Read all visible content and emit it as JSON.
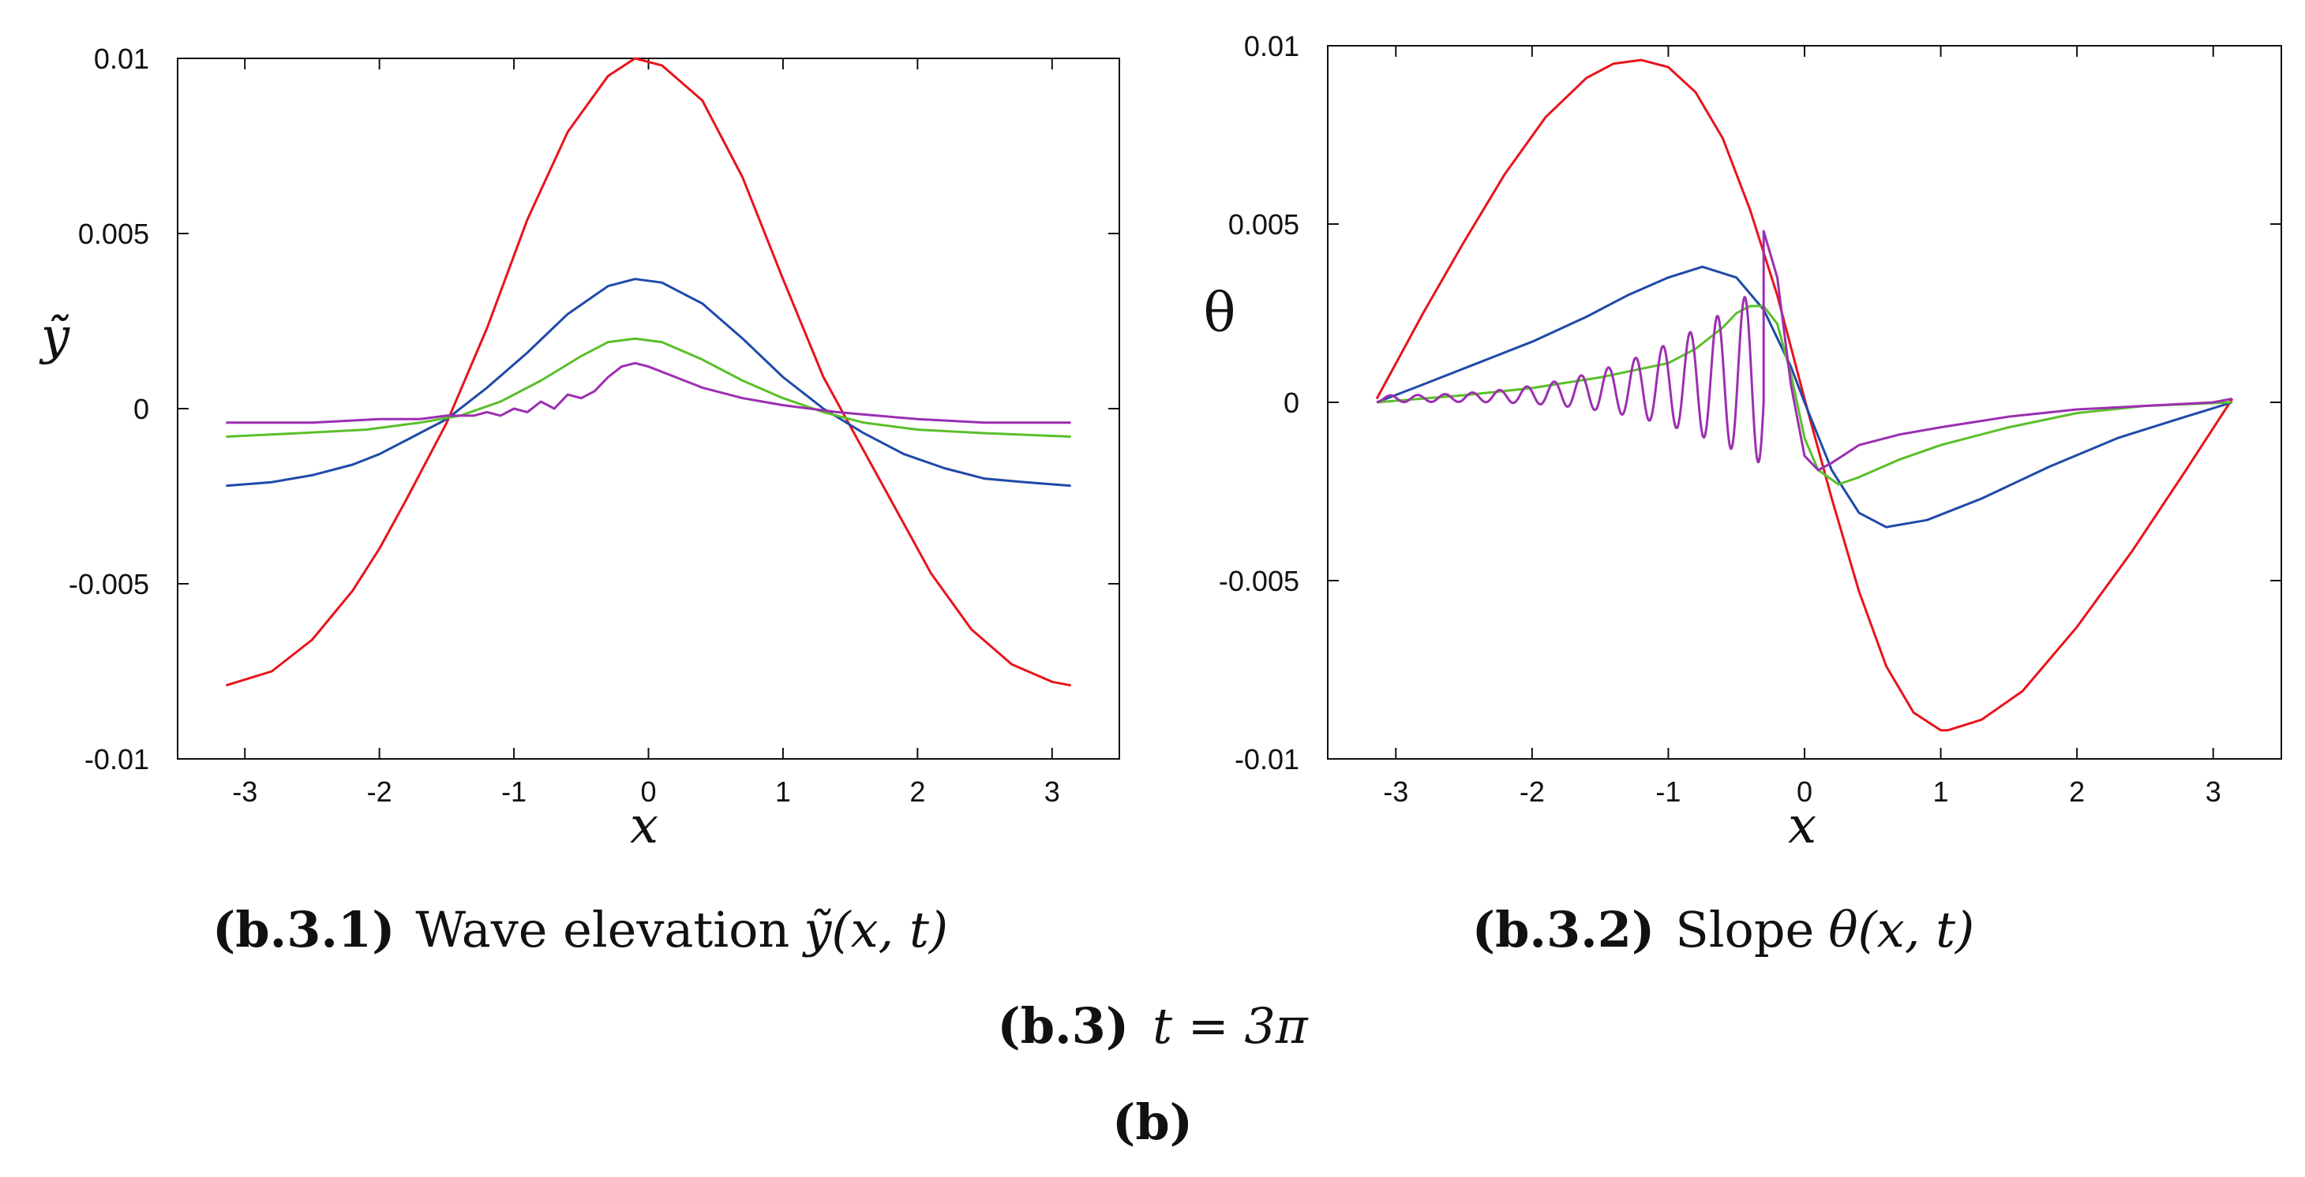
{
  "colors": {
    "red": "#e8141b",
    "blue": "#1f4aa8",
    "green": "#5bbf2a",
    "purple": "#9c2fb0"
  },
  "chart_data": [
    {
      "id": "b.3.1",
      "type": "line",
      "title": "Wave elevation ỹ(x, t)",
      "caption_label": "(b.3.1)",
      "caption_text": "Wave elevation",
      "caption_math": "ỹ(x, t)",
      "xlabel": "x",
      "ylabel": "ỹ",
      "xlim": [
        -3.5,
        3.5
      ],
      "ylim": [
        -0.01,
        0.01
      ],
      "xticks": [
        -3,
        -2,
        -1,
        0,
        1,
        2,
        3
      ],
      "xtick_labels": [
        "-3",
        "-2",
        "-1",
        "0",
        "1",
        "2",
        "3"
      ],
      "yticks": [
        -0.01,
        -0.005,
        0,
        0.005,
        0.01
      ],
      "ytick_labels": [
        "-0.01",
        "-0.005",
        "0",
        "0.005",
        "0.01"
      ],
      "series": [
        {
          "name": "red",
          "color": "#e8141b",
          "x": [
            -3.14,
            -2.8,
            -2.5,
            -2.2,
            -2.0,
            -1.8,
            -1.5,
            -1.2,
            -0.9,
            -0.6,
            -0.3,
            -0.1,
            0.1,
            0.4,
            0.7,
            1.0,
            1.3,
            1.5,
            1.8,
            2.1,
            2.4,
            2.7,
            3.0,
            3.14
          ],
          "y": [
            -0.0079,
            -0.0075,
            -0.0066,
            -0.0052,
            -0.004,
            -0.0026,
            -0.0004,
            0.0023,
            0.0054,
            0.0079,
            0.0095,
            0.01,
            0.0098,
            0.0088,
            0.0066,
            0.0037,
            0.0009,
            -0.0005,
            -0.0026,
            -0.0047,
            -0.0063,
            -0.0073,
            -0.0078,
            -0.0079
          ]
        },
        {
          "name": "blue",
          "color": "#1f4aa8",
          "x": [
            -3.14,
            -2.8,
            -2.5,
            -2.2,
            -2.0,
            -1.8,
            -1.5,
            -1.2,
            -0.9,
            -0.6,
            -0.3,
            -0.1,
            0.1,
            0.4,
            0.7,
            1.0,
            1.3,
            1.6,
            1.9,
            2.2,
            2.5,
            2.8,
            3.14
          ],
          "y": [
            -0.0022,
            -0.0021,
            -0.0019,
            -0.0016,
            -0.0013,
            -0.0009,
            -0.0003,
            0.0006,
            0.0016,
            0.0027,
            0.0035,
            0.0037,
            0.0036,
            0.003,
            0.002,
            0.0009,
            0.0,
            -0.0007,
            -0.0013,
            -0.0017,
            -0.002,
            -0.0021,
            -0.0022
          ]
        },
        {
          "name": "green",
          "color": "#5bbf2a",
          "x": [
            -3.14,
            -2.6,
            -2.1,
            -1.7,
            -1.4,
            -1.1,
            -0.8,
            -0.5,
            -0.3,
            -0.1,
            0.1,
            0.4,
            0.7,
            1.0,
            1.3,
            1.6,
            2.0,
            2.5,
            3.14
          ],
          "y": [
            -0.0008,
            -0.0007,
            -0.0006,
            -0.0004,
            -0.0002,
            0.0002,
            0.0008,
            0.0015,
            0.0019,
            0.002,
            0.0019,
            0.0014,
            0.0008,
            0.0003,
            -0.0001,
            -0.0004,
            -0.0006,
            -0.0007,
            -0.0008
          ]
        },
        {
          "name": "purple",
          "color": "#9c2fb0",
          "x": [
            -3.14,
            -2.5,
            -2.0,
            -1.7,
            -1.5,
            -1.3,
            -1.2,
            -1.1,
            -1.0,
            -0.9,
            -0.8,
            -0.7,
            -0.6,
            -0.5,
            -0.4,
            -0.3,
            -0.2,
            -0.1,
            0.0,
            0.2,
            0.4,
            0.7,
            1.0,
            1.4,
            2.0,
            2.5,
            3.14
          ],
          "y": [
            -0.0004,
            -0.0004,
            -0.0003,
            -0.0003,
            -0.0002,
            -0.0002,
            -0.0001,
            -0.0002,
            0.0,
            -0.0001,
            0.0002,
            0.0,
            0.0004,
            0.0003,
            0.0005,
            0.0009,
            0.0012,
            0.0013,
            0.0012,
            0.0009,
            0.0006,
            0.0003,
            0.0001,
            -0.0001,
            -0.0003,
            -0.0004,
            -0.0004
          ]
        }
      ]
    },
    {
      "id": "b.3.2",
      "type": "line",
      "title": "Slope θ(x, t)",
      "caption_label": "(b.3.2)",
      "caption_text": "Slope",
      "caption_math": "θ(x, t)",
      "xlabel": "x",
      "ylabel": "θ",
      "xlim": [
        -3.5,
        3.5
      ],
      "ylim": [
        -0.01,
        0.01
      ],
      "xticks": [
        -3,
        -2,
        -1,
        0,
        1,
        2,
        3
      ],
      "xtick_labels": [
        "-3",
        "-2",
        "-1",
        "0",
        "1",
        "2",
        "3"
      ],
      "yticks": [
        -0.01,
        -0.005,
        0,
        0.005,
        0.01
      ],
      "ytick_labels": [
        "-0.01",
        "-0.005",
        "0",
        "0.005",
        "0.01"
      ],
      "series": [
        {
          "name": "red",
          "color": "#e8141b",
          "x": [
            -3.14,
            -2.8,
            -2.5,
            -2.2,
            -1.9,
            -1.6,
            -1.4,
            -1.2,
            -1.0,
            -0.8,
            -0.6,
            -0.4,
            -0.2,
            0.0,
            0.2,
            0.4,
            0.6,
            0.8,
            1.0,
            1.05,
            1.3,
            1.6,
            2.0,
            2.4,
            2.8,
            3.14
          ],
          "y": [
            0.0001,
            0.0025,
            0.0045,
            0.0064,
            0.008,
            0.0091,
            0.0095,
            0.0096,
            0.0094,
            0.0087,
            0.0074,
            0.0054,
            0.003,
            0.0001,
            -0.0027,
            -0.0053,
            -0.0074,
            -0.0087,
            -0.0092,
            -0.0092,
            -0.0089,
            -0.0081,
            -0.0063,
            -0.0042,
            -0.0019,
            0.0001
          ]
        },
        {
          "name": "blue",
          "color": "#1f4aa8",
          "x": [
            -3.14,
            -2.8,
            -2.4,
            -2.0,
            -1.6,
            -1.3,
            -1.0,
            -0.75,
            -0.5,
            -0.3,
            -0.1,
            0.0,
            0.2,
            0.4,
            0.6,
            0.9,
            1.3,
            1.8,
            2.3,
            2.8,
            3.14
          ],
          "y": [
            0.0,
            0.0005,
            0.0011,
            0.0017,
            0.0024,
            0.003,
            0.0035,
            0.0038,
            0.0035,
            0.0026,
            0.001,
            0.0,
            -0.0019,
            -0.0031,
            -0.0035,
            -0.0033,
            -0.0027,
            -0.0018,
            -0.001,
            -0.0004,
            0.0
          ]
        },
        {
          "name": "green",
          "color": "#5bbf2a",
          "x": [
            -3.14,
            -2.5,
            -2.0,
            -1.5,
            -1.0,
            -0.8,
            -0.6,
            -0.5,
            -0.4,
            -0.3,
            -0.2,
            -0.1,
            0.0,
            0.1,
            0.25,
            0.4,
            0.7,
            1.0,
            1.5,
            2.0,
            2.5,
            3.14
          ],
          "y": [
            0.0,
            0.0002,
            0.0004,
            0.0007,
            0.0011,
            0.0015,
            0.0021,
            0.0025,
            0.0027,
            0.0027,
            0.0022,
            0.0008,
            -0.001,
            -0.0019,
            -0.0023,
            -0.0021,
            -0.0016,
            -0.0012,
            -0.0007,
            -0.0003,
            -0.0001,
            0.0
          ]
        }
      ]
    }
  ],
  "purple_slope": {
    "name": "purple",
    "color": "#9c2fb0",
    "envelope_start": -3.14,
    "envelope_end": -0.3,
    "tail_x": [
      -0.3,
      -0.2,
      -0.1,
      0.0,
      0.1,
      0.2,
      0.4,
      0.7,
      1.0,
      1.5,
      2.0,
      2.5,
      3.0,
      3.14
    ],
    "tail_y": [
      0.0048,
      0.0035,
      0.0005,
      -0.0015,
      -0.0019,
      -0.0017,
      -0.0012,
      -0.0009,
      -0.0007,
      -0.0004,
      -0.0002,
      -0.0001,
      0.0,
      0.0001
    ]
  },
  "captions": {
    "sub_label": "(b.3)",
    "sub_math": "t = 3π",
    "main_label": "(b)"
  }
}
